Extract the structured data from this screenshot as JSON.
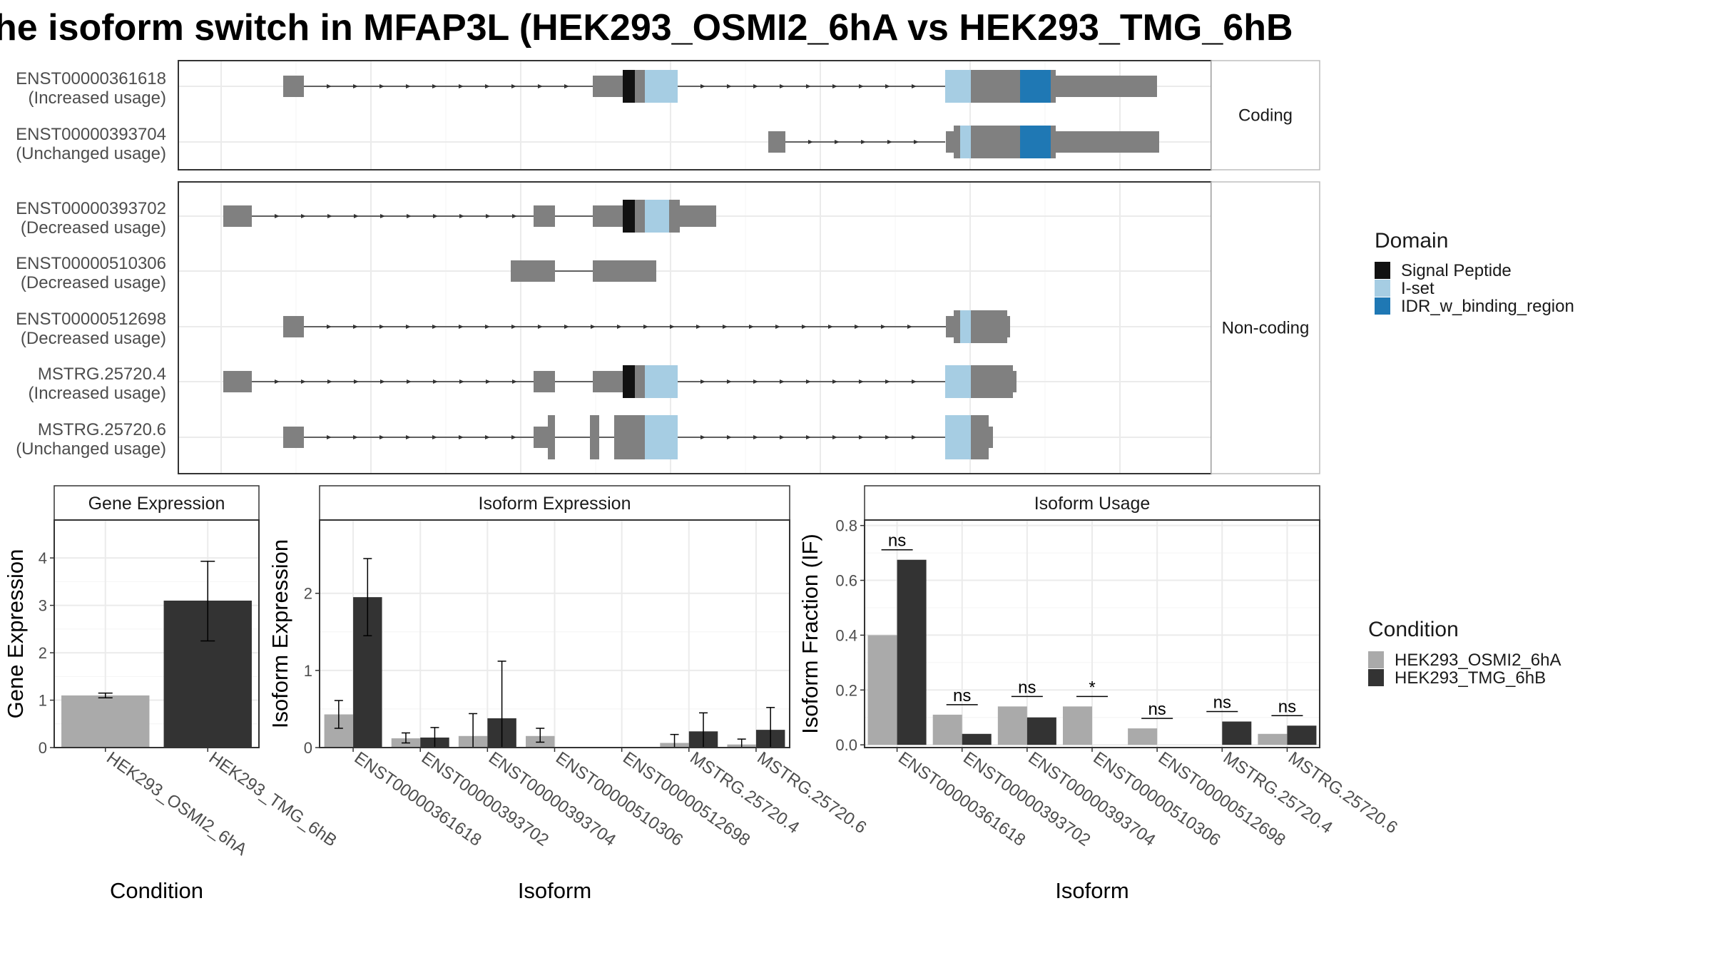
{
  "title": "he isoform switch in MFAP3L (HEK293_OSMI2_6hA vs HEK293_TMG_6hB",
  "colors": {
    "exon": "#808080",
    "signal_peptide": "#111111",
    "iset": "#a6cde3",
    "idr": "#1f78b4",
    "cond_a": "#aaaaaa",
    "cond_b": "#333333"
  },
  "structure_plot": {
    "facets": [
      "Coding",
      "Non-coding"
    ],
    "legend": {
      "title": "Domain",
      "items": [
        "Signal Peptide",
        "I-set",
        "IDR_w_binding_region"
      ]
    },
    "transcripts": [
      {
        "id": "ENST00000361618",
        "usage": "(Increased usage)",
        "facet": "Coding"
      },
      {
        "id": "ENST00000393704",
        "usage": "(Unchanged usage)",
        "facet": "Coding"
      },
      {
        "id": "ENST00000393702",
        "usage": "(Decreased usage)",
        "facet": "Non-coding"
      },
      {
        "id": "ENST00000510306",
        "usage": "(Decreased usage)",
        "facet": "Non-coding"
      },
      {
        "id": "ENST00000512698",
        "usage": "(Decreased usage)",
        "facet": "Non-coding"
      },
      {
        "id": "MSTRG.25720.4",
        "usage": "(Increased usage)",
        "facet": "Non-coding"
      },
      {
        "id": "MSTRG.25720.6",
        "usage": "(Unchanged usage)",
        "facet": "Non-coding"
      }
    ]
  },
  "chart_data": [
    {
      "type": "bar",
      "panel_title": "Gene Expression",
      "xlabel": "Condition",
      "ylabel": "Gene Expression",
      "categories": [
        "HEK293_OSMI2_6hA",
        "HEK293_TMG_6hB"
      ],
      "values": [
        1.1,
        3.1
      ],
      "error_low": [
        1.05,
        2.25
      ],
      "error_high": [
        1.15,
        3.93
      ],
      "ylim": [
        0,
        4.8
      ],
      "yticks": [
        0,
        1,
        2,
        3,
        4
      ]
    },
    {
      "type": "bar",
      "panel_title": "Isoform Expression",
      "xlabel": "Isoform",
      "ylabel": "Isoform Expression",
      "categories": [
        "ENST00000361618",
        "ENST00000393702",
        "ENST00000393704",
        "ENST00000510306",
        "ENST00000512698",
        "MSTRG.25720.4",
        "MSTRG.25720.6"
      ],
      "series": [
        {
          "name": "HEK293_OSMI2_6hA",
          "values": [
            0.43,
            0.12,
            0.15,
            0.15,
            0.0,
            0.06,
            0.04
          ],
          "error_low": [
            0.25,
            0.06,
            0.0,
            0.07,
            0.0,
            0.0,
            0.0
          ],
          "error_high": [
            0.61,
            0.19,
            0.44,
            0.25,
            0.0,
            0.17,
            0.11
          ]
        },
        {
          "name": "HEK293_TMG_6hB",
          "values": [
            1.95,
            0.13,
            0.38,
            0.0,
            0.0,
            0.21,
            0.23
          ],
          "error_low": [
            1.45,
            0.0,
            0.0,
            0.0,
            0.0,
            0.0,
            0.0
          ],
          "error_high": [
            2.45,
            0.26,
            1.12,
            0.0,
            0.0,
            0.45,
            0.52
          ]
        }
      ],
      "ylim": [
        0,
        2.95
      ],
      "yticks": [
        0,
        1,
        2
      ]
    },
    {
      "type": "bar",
      "panel_title": "Isoform Usage",
      "xlabel": "Isoform",
      "ylabel": "Isoform Fraction (IF)",
      "categories": [
        "ENST00000361618",
        "ENST00000393702",
        "ENST00000393704",
        "ENST00000510306",
        "ENST00000512698",
        "MSTRG.25720.4",
        "MSTRG.25720.6"
      ],
      "series": [
        {
          "name": "HEK293_OSMI2_6hA",
          "values": [
            0.4,
            0.11,
            0.14,
            0.14,
            0.06,
            0.0,
            0.04
          ]
        },
        {
          "name": "HEK293_TMG_6hB",
          "values": [
            0.675,
            0.04,
            0.1,
            0.0,
            0.0,
            0.085,
            0.07
          ]
        }
      ],
      "significance": [
        "ns",
        "ns",
        "ns",
        "*",
        "ns",
        "ns",
        "ns"
      ],
      "ylim": [
        -0.01,
        0.82
      ],
      "yticks": [
        0.0,
        0.2,
        0.4,
        0.6,
        0.8
      ],
      "ytick_labels": [
        "0.0",
        "0.2",
        "0.4",
        "0.6",
        "0.8"
      ]
    }
  ],
  "condition_legend": {
    "title": "Condition",
    "items": [
      "HEK293_OSMI2_6hA",
      "HEK293_TMG_6hB"
    ]
  }
}
